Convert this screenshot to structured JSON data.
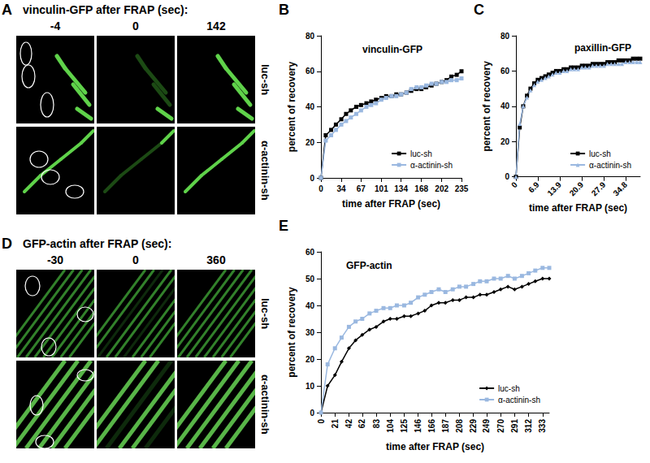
{
  "image_panels": [
    {
      "panel": "A",
      "title": "vinculin-GFP after FRAP (sec):",
      "times": [
        -4,
        0,
        142
      ],
      "rows": [
        "luc-sh",
        "α-actinin-sh"
      ]
    },
    {
      "panel": "D",
      "title": "GFP-actin after FRAP (sec):",
      "times": [
        -30,
        0,
        360
      ],
      "rows": [
        "luc-sh",
        "α-actinin-sh"
      ]
    }
  ],
  "chart_data": [
    {
      "panel": "B",
      "type": "line",
      "title": "vinculin-GFP",
      "x_label": "time after FRAP (sec)",
      "y_label": "percent of recovery",
      "x": [
        0,
        8,
        17,
        25,
        34,
        42,
        50,
        59,
        67,
        76,
        84,
        92,
        101,
        109,
        118,
        126,
        134,
        143,
        151,
        160,
        168,
        176,
        185,
        193,
        202,
        210,
        218,
        227,
        235
      ],
      "series": [
        {
          "name": "luc-sh",
          "color": "#000000",
          "marker": "square",
          "values": [
            0,
            24,
            27,
            30,
            33,
            36,
            38,
            40,
            41,
            42,
            43,
            44,
            45,
            46,
            46,
            47,
            47,
            48,
            49,
            50,
            50,
            51,
            52,
            53,
            54,
            55,
            57,
            58,
            60
          ]
        },
        {
          "name": "α-actinin-sh",
          "color": "#9ab8e0",
          "marker": "square",
          "values": [
            0,
            21,
            24,
            27,
            30,
            32,
            34,
            36,
            38,
            40,
            41,
            42,
            44,
            45,
            46,
            46,
            47,
            48,
            50,
            51,
            51,
            52,
            53,
            53,
            54,
            54,
            55,
            55,
            56
          ]
        }
      ],
      "xlim": [
        0,
        235
      ],
      "xticks": [
        0,
        34,
        67,
        101,
        134,
        168,
        202,
        235
      ],
      "ylim": [
        0,
        80
      ],
      "yticks": [
        0,
        20,
        40,
        60,
        80
      ],
      "grid": false,
      "legend": "lower right"
    },
    {
      "panel": "C",
      "type": "line",
      "title": "paxillin-GFP",
      "x_label": "time after FRAP (sec)",
      "y_label": "percent of recovery",
      "x": [
        0,
        1.2,
        2.3,
        3.5,
        4.6,
        5.8,
        6.9,
        8.1,
        9.3,
        10.4,
        11.6,
        12.7,
        13.9,
        15.1,
        16.2,
        17.4,
        18.5,
        19.7,
        20.9,
        22.0,
        23.2,
        24.3,
        25.5,
        26.7,
        27.9,
        29.0,
        30.2,
        31.3,
        32.5,
        33.6,
        34.8,
        36.0,
        37.1,
        38.3,
        39.4
      ],
      "series": [
        {
          "name": "luc-sh",
          "color": "#000000",
          "marker": "square",
          "values": [
            0,
            28,
            40,
            46,
            50,
            53,
            55,
            56,
            57,
            58,
            59,
            60,
            60,
            61,
            61,
            62,
            62,
            62,
            63,
            63,
            63,
            64,
            64,
            64,
            64,
            65,
            65,
            65,
            66,
            66,
            66,
            66,
            67,
            67,
            67
          ]
        },
        {
          "name": "α-actinin-sh",
          "color": "#9ab8e0",
          "marker": "triangle",
          "values": [
            0,
            30,
            40,
            45,
            49,
            52,
            54,
            55,
            56,
            57,
            58,
            59,
            59,
            60,
            60,
            61,
            61,
            61,
            62,
            62,
            62,
            63,
            63,
            63,
            63,
            64,
            64,
            64,
            64,
            64,
            65,
            65,
            65,
            65,
            65
          ]
        }
      ],
      "xlim": [
        0,
        39.4
      ],
      "xticks": [
        0,
        6.9,
        13.9,
        20.9,
        27.9,
        34.8
      ],
      "ylim": [
        0,
        80
      ],
      "yticks": [
        0,
        20,
        40,
        60,
        80
      ],
      "grid": false,
      "legend": "lower right"
    },
    {
      "panel": "E",
      "type": "line",
      "title": "GFP-actin",
      "x_label": "time after FRAP (sec)",
      "y_label": "percent of recovery",
      "x": [
        0,
        10,
        21,
        31,
        42,
        52,
        62,
        73,
        83,
        94,
        104,
        114,
        125,
        135,
        146,
        156,
        166,
        177,
        187,
        198,
        208,
        218,
        229,
        239,
        249,
        260,
        270,
        281,
        291,
        302,
        312,
        322,
        333,
        343
      ],
      "series": [
        {
          "name": "luc-sh",
          "color": "#000000",
          "marker": "diamond",
          "values": [
            0,
            10,
            14,
            19,
            24,
            27,
            29,
            31,
            32,
            34,
            35,
            35,
            36,
            36,
            37,
            38,
            40,
            41,
            41,
            42,
            42,
            43,
            43,
            44,
            44,
            45,
            46,
            47,
            46,
            47,
            48,
            49,
            50,
            50
          ]
        },
        {
          "name": "α-actinin-sh",
          "color": "#9ab8e0",
          "marker": "square",
          "values": [
            0,
            18,
            24,
            28,
            32,
            34,
            35,
            37,
            38,
            39,
            39,
            40,
            40,
            41,
            43,
            44,
            45,
            46,
            45,
            46,
            47,
            47,
            48,
            49,
            49,
            50,
            50,
            51,
            50,
            51,
            52,
            53,
            54,
            54
          ]
        }
      ],
      "xlim": [
        0,
        343
      ],
      "xticks": [
        0,
        21,
        42,
        62,
        83,
        104,
        125,
        146,
        166,
        187,
        208,
        229,
        249,
        270,
        291,
        312,
        333
      ],
      "ylim": [
        0,
        60
      ],
      "yticks": [
        0,
        10,
        20,
        30,
        40,
        50,
        60
      ],
      "grid": false,
      "legend": "lower right"
    }
  ]
}
